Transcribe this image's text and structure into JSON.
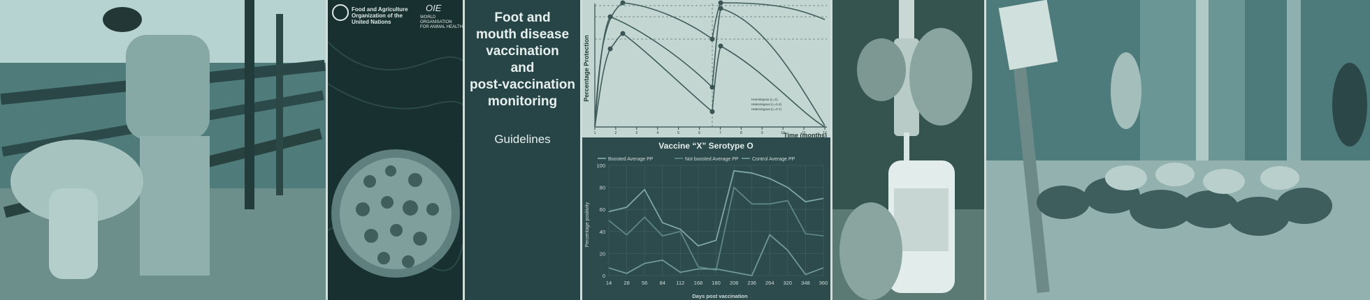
{
  "left_cover": {
    "fao_line1": "Food and Agriculture",
    "fao_line2": "Organization of the",
    "fao_line3": "United Nations",
    "oie_mark": "OIE",
    "oie_line1": "WORLD ORGANISATION",
    "oie_line2": "FOR ANIMAL HEALTH"
  },
  "cover": {
    "title_lines": [
      "Foot and",
      "mouth disease",
      "vaccination",
      "and",
      "post-vaccination",
      "monitoring"
    ],
    "subtitle": "Guidelines"
  },
  "chart_top": {
    "ylabel": "Percentage Protection",
    "xlabel": "Time (months)",
    "x_ticks": [
      "1",
      "2",
      "3",
      "4",
      "5",
      "6",
      "7",
      "8",
      "9",
      "10",
      "11",
      "12"
    ],
    "legend": [
      "Homologous (r₁=1)",
      "Heterologous (r₁=0.4)",
      "Heterologous (r₁=0.7)"
    ]
  },
  "chart_data": [
    {
      "type": "line",
      "title": "Vaccine “X” Serotype O",
      "xlabel": "Days post vaccination",
      "ylabel": "Percentage positivity",
      "x": [
        14,
        28,
        56,
        84,
        112,
        168,
        180,
        208,
        236,
        264,
        320,
        348,
        360
      ],
      "ylim": [
        0,
        100
      ],
      "y_ticks": [
        0,
        20,
        40,
        60,
        80,
        100
      ],
      "series": [
        {
          "name": "Boosted  Average PP",
          "values": [
            58,
            62,
            78,
            48,
            42,
            27,
            32,
            95,
            93,
            88,
            80,
            67,
            70
          ]
        },
        {
          "name": "Not boosted  Average PP",
          "values": [
            50,
            37,
            53,
            36,
            40,
            8,
            5,
            80,
            65,
            65,
            68,
            38,
            36
          ]
        },
        {
          "name": "Control  Average PP",
          "values": [
            7,
            2,
            11,
            14,
            3,
            6,
            6,
            3,
            0,
            37,
            23,
            1,
            7
          ]
        }
      ],
      "colors": [
        "#7fa8a4",
        "#5e8682",
        "#6f9994"
      ],
      "legend_position": "top"
    }
  ]
}
